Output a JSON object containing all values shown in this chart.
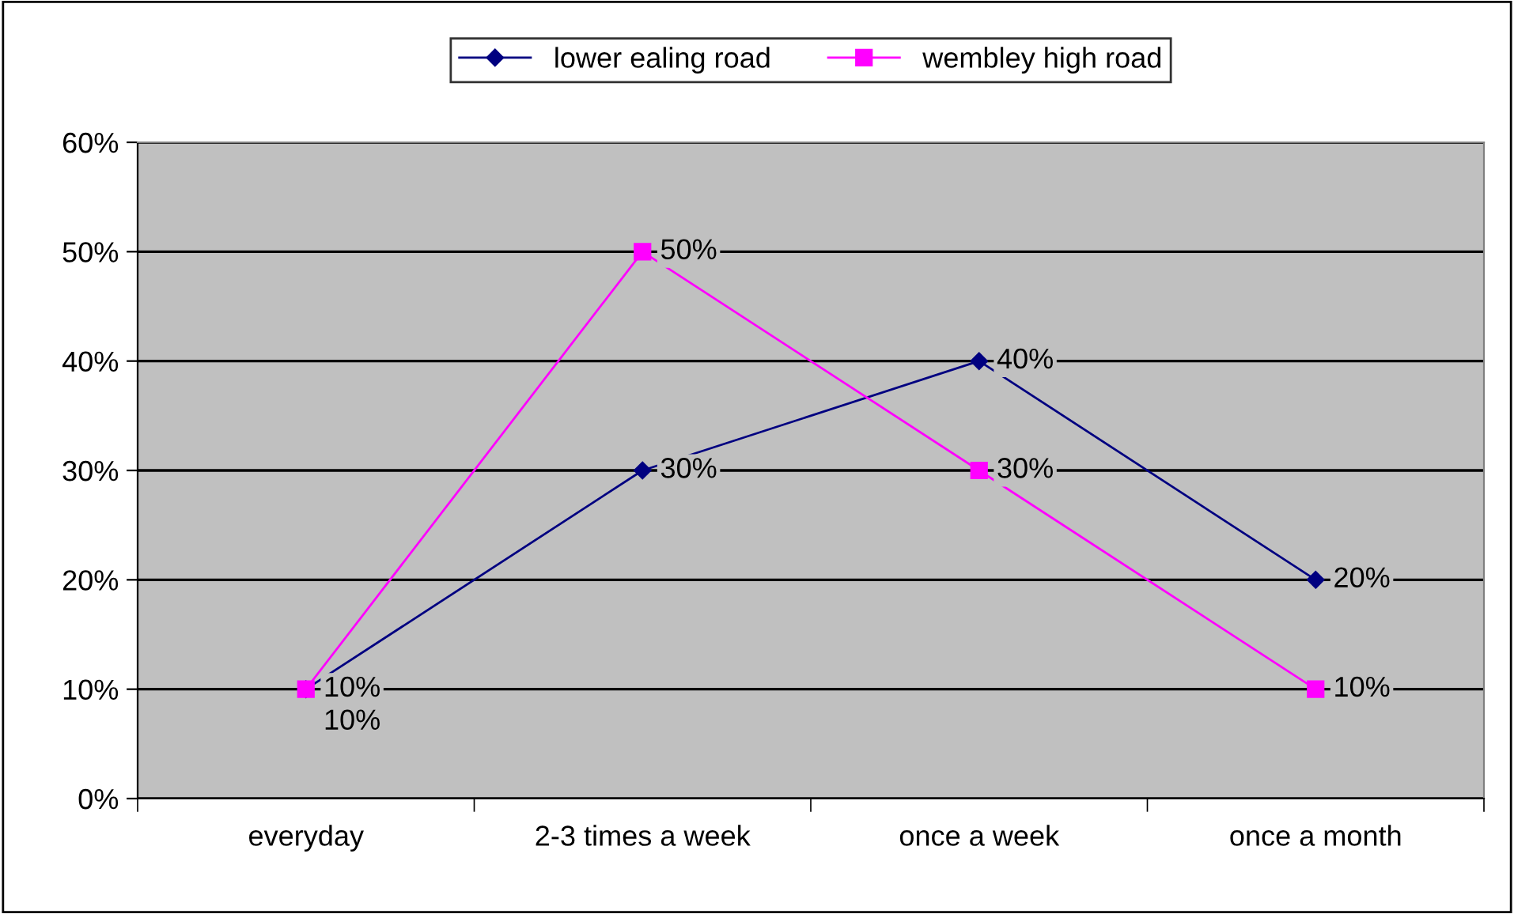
{
  "chart_data": {
    "type": "line",
    "categories": [
      "everyday",
      "2-3 times a week",
      "once a week",
      "once a month"
    ],
    "series": [
      {
        "name": "lower ealing road",
        "color": "#000080",
        "marker": "diamond",
        "values": [
          10,
          30,
          40,
          20
        ],
        "value_labels": [
          "10%",
          "30%",
          "40%",
          "20%"
        ]
      },
      {
        "name": "wembley high road",
        "color": "#ff00ff",
        "marker": "square",
        "values": [
          10,
          50,
          30,
          10
        ],
        "value_labels": [
          "10%",
          "50%",
          "30%",
          "10%"
        ]
      }
    ],
    "ylim": [
      0,
      60
    ],
    "yticks": [
      {
        "value": 0,
        "label": "0%"
      },
      {
        "value": 10,
        "label": "10%"
      },
      {
        "value": 20,
        "label": "20%"
      },
      {
        "value": 30,
        "label": "30%"
      },
      {
        "value": 40,
        "label": "40%"
      },
      {
        "value": 50,
        "label": "50%"
      },
      {
        "value": 60,
        "label": "60%"
      }
    ],
    "grid": "y",
    "legend": "top",
    "line_style": "solid"
  }
}
